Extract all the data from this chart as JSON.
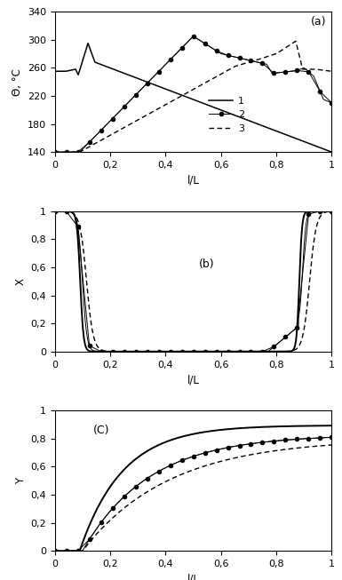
{
  "fig_width": 3.85,
  "fig_height": 6.53,
  "dpi": 100,
  "panel_a": {
    "label": "(a)",
    "ylabel": "Θ, °C",
    "xlabel": "l/L",
    "ylim": [
      140,
      340
    ],
    "xlim": [
      0,
      1
    ],
    "yticks": [
      140,
      180,
      220,
      260,
      300,
      340
    ],
    "xticks": [
      0,
      0.2,
      0.4,
      0.6,
      0.8,
      1
    ],
    "xticklabels": [
      "0",
      "0,2",
      "0,4",
      "0,6",
      "0,8",
      "1"
    ],
    "yticklabels": [
      "140",
      "180",
      "220",
      "260",
      "300",
      "340"
    ]
  },
  "panel_b": {
    "label": "(b)",
    "ylabel": "X",
    "xlabel": "l/L",
    "ylim": [
      0,
      1
    ],
    "xlim": [
      0,
      1
    ],
    "yticks": [
      0,
      0.2,
      0.4,
      0.6,
      0.8,
      1
    ],
    "xticks": [
      0,
      0.2,
      0.4,
      0.6,
      0.8,
      1
    ],
    "xticklabels": [
      "0",
      "0,2",
      "0,4",
      "0,6",
      "0,8",
      "1"
    ],
    "yticklabels": [
      "0",
      "0,2",
      "0,4",
      "0,6",
      "0,8",
      "1"
    ]
  },
  "panel_c": {
    "label": "(C)",
    "ylabel": "Y",
    "xlabel": "l/L",
    "ylim": [
      0,
      1
    ],
    "xlim": [
      0,
      1
    ],
    "yticks": [
      0,
      0.2,
      0.4,
      0.6,
      0.8,
      1
    ],
    "xticks": [
      0,
      0.2,
      0.4,
      0.6,
      0.8,
      1
    ],
    "xticklabels": [
      "0",
      "0,2",
      "0,4",
      "0,6",
      "0,8",
      "1"
    ],
    "yticklabels": [
      "0",
      "0,2",
      "0,4",
      "0,6",
      "0,8",
      "1"
    ]
  }
}
